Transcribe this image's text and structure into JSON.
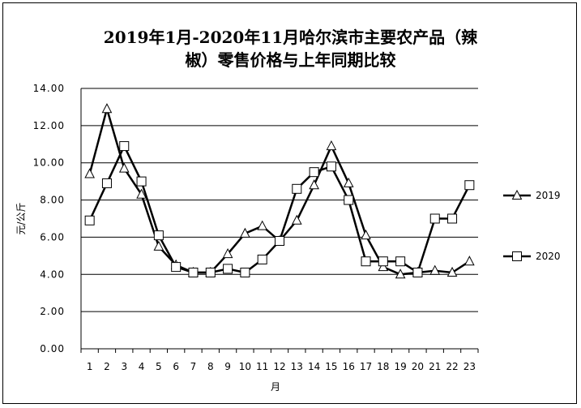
{
  "chart_data": {
    "type": "line",
    "title_lines": [
      "2019年1月-2020年11月哈尔滨市主要农产品（辣",
      "椒）零售价格与上年同期比较"
    ],
    "xlabel": "月",
    "ylabel": "元/公斤",
    "categories": [
      "1",
      "2",
      "3",
      "4",
      "5",
      "6",
      "7",
      "8",
      "9",
      "10",
      "11",
      "12",
      "13",
      "14",
      "15",
      "16",
      "17",
      "18",
      "19",
      "20",
      "21",
      "22",
      "23"
    ],
    "ylim": [
      0,
      14
    ],
    "yticks": [
      "0.00",
      "2.00",
      "4.00",
      "6.00",
      "8.00",
      "10.00",
      "12.00",
      "14.00"
    ],
    "grid": true,
    "legend_position": "right",
    "series": [
      {
        "name": "2019",
        "marker": "triangle",
        "values": [
          9.4,
          12.9,
          9.7,
          8.3,
          5.5,
          4.5,
          4.1,
          4.1,
          5.1,
          6.2,
          6.6,
          5.8,
          6.9,
          8.8,
          10.9,
          8.9,
          6.1,
          4.4,
          4.0,
          4.1,
          4.2,
          4.1,
          4.7
        ]
      },
      {
        "name": "2020",
        "marker": "square",
        "values": [
          6.9,
          8.9,
          10.9,
          9.0,
          6.1,
          4.4,
          4.1,
          4.1,
          4.3,
          4.1,
          4.8,
          5.8,
          8.6,
          9.5,
          9.8,
          8.0,
          4.7,
          4.7,
          4.7,
          4.1,
          7.0,
          7.0,
          8.8
        ]
      }
    ],
    "colors": {
      "line": "#000000",
      "grid": "#000000",
      "marker_fill": "#ffffff"
    }
  }
}
